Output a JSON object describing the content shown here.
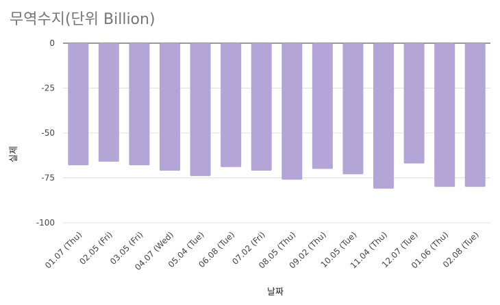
{
  "chart_data": {
    "type": "bar",
    "title": "무역수지(단위 Billion)",
    "xlabel": "날짜",
    "ylabel": "실제",
    "categories": [
      "01.07 (Thu)",
      "02.05 (Fri)",
      "03.05 (Fri)",
      "04.07 (Wed)",
      "05.04 (Tue)",
      "06.08 (Tue)",
      "07.02 (Fri)",
      "08.05 (Thu)",
      "09.02 (Thu)",
      "10.05 (Tue)",
      "11.04 (Thu)",
      "12.07 (Tue)",
      "01.06 (Thu)",
      "02.08 (Tue)"
    ],
    "series": [
      {
        "values": [
          -68,
          -66,
          -68,
          -71,
          -74,
          -69,
          -71,
          -76,
          -70,
          -73,
          -81,
          -67,
          -80,
          -80
        ]
      }
    ],
    "ylim": [
      -100,
      0
    ],
    "yticks": [
      0,
      -25,
      -50,
      -75,
      -100
    ],
    "grid": true,
    "legend": "none",
    "colors": {
      "bar": "#b3a6d6",
      "grid": "#e0e0e0",
      "axis": "#333333"
    }
  }
}
